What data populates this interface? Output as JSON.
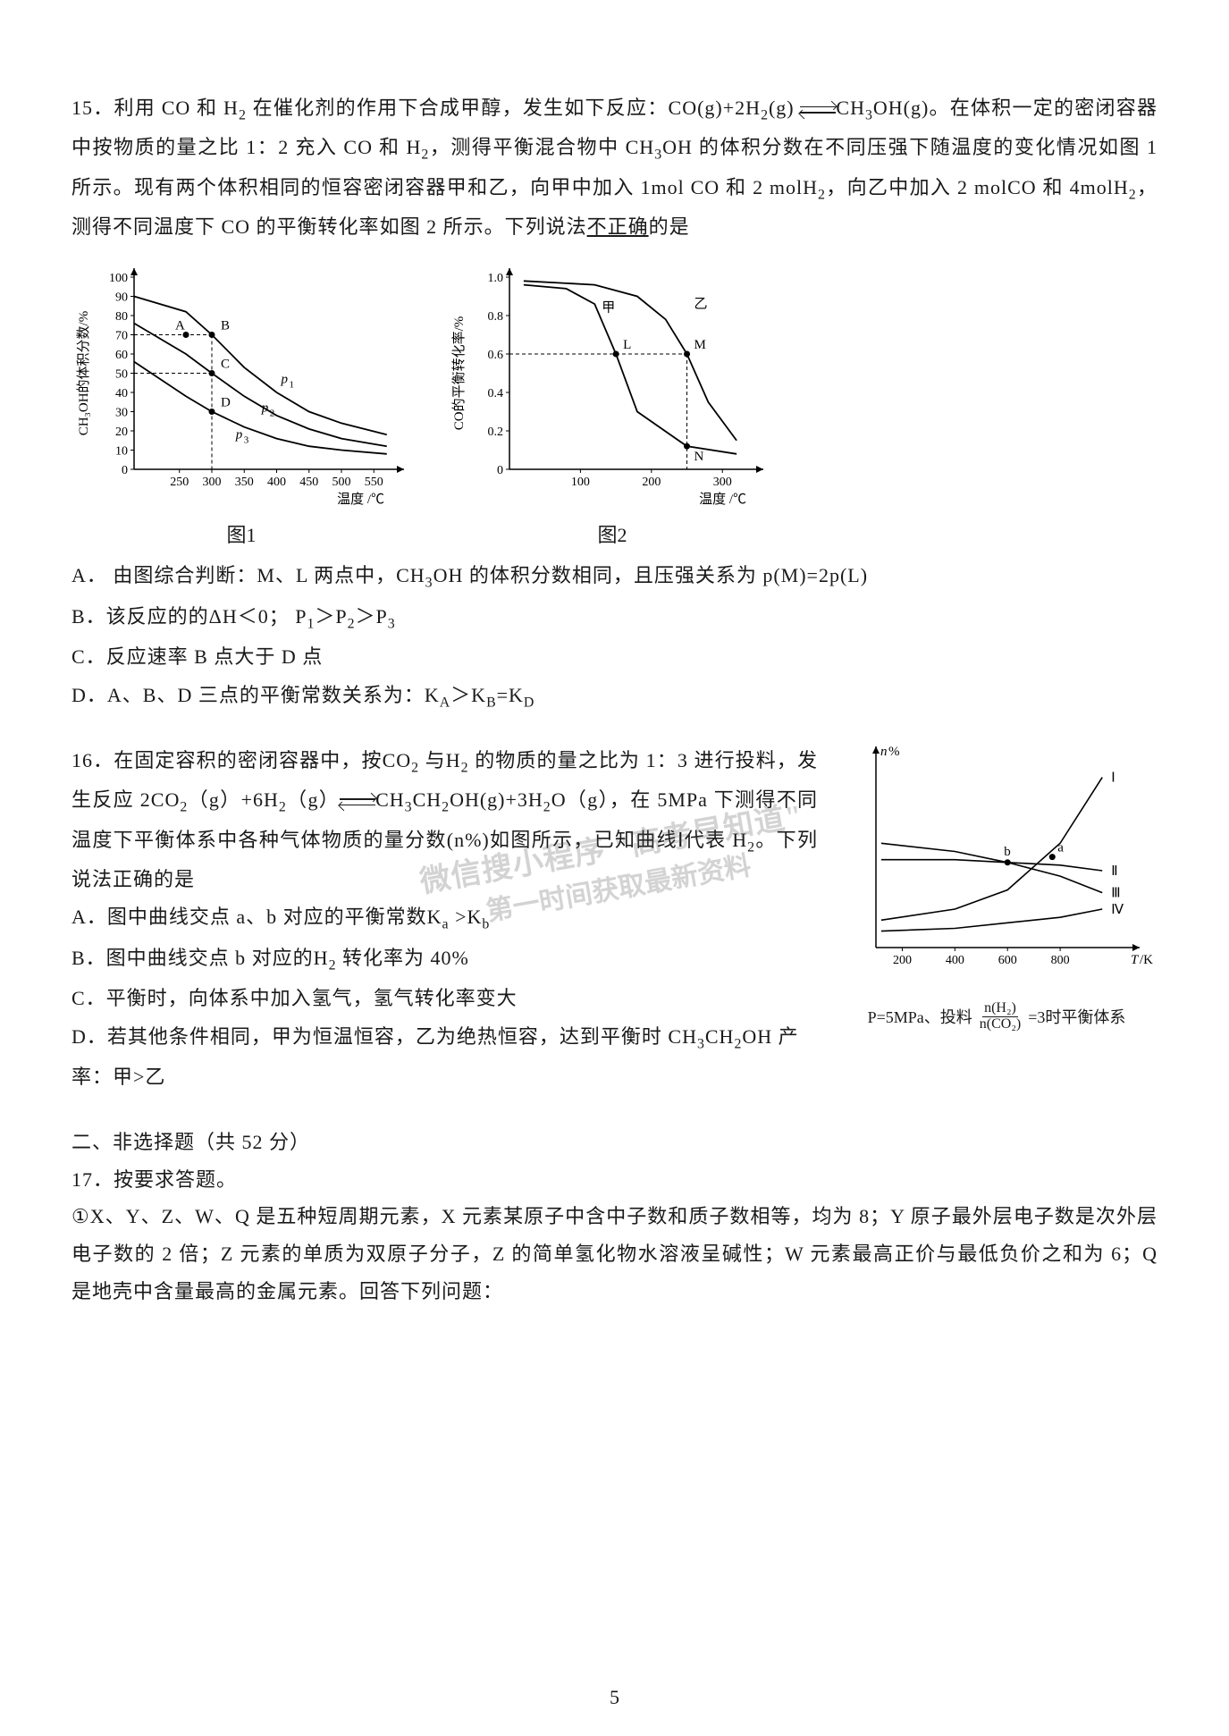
{
  "q15": {
    "intro_p1": "15．利用 CO 和 H",
    "intro_p2": " 在催化剂的作用下合成甲醇，发生如下反应：CO(g)+2H",
    "intro_p3": "(g)",
    "intro_p4": "CH",
    "intro_p5": "OH(g)。在体积一定的密闭容器中按物质的量之比 1：2 充入 CO 和 H",
    "intro_p6": "，测得平衡混合物中 CH",
    "intro_p7": "OH 的体积分数在不同压强下随温度的变化情况如图 1 所示。现有两个体积相同的恒容密闭容器甲和乙，向甲中加入 1mol CO 和 2 molH",
    "intro_p8": "，向乙中加入 2 molCO 和 4molH",
    "intro_p9": "，  测得不同温度下 CO 的平衡转化率如图 2 所示。下列说法",
    "intro_underline": "不正确",
    "intro_p10": "的是",
    "fig1_caption": "图1",
    "fig2_caption": "图2",
    "fig1": {
      "bg": "#ffffff",
      "axis": "#000000",
      "y_label": "CH₃OH的体积分数/%",
      "x_label": "温度 /℃",
      "y_ticks": [
        0,
        10,
        20,
        30,
        40,
        50,
        60,
        70,
        80,
        90,
        100
      ],
      "x_ticks": [
        250,
        300,
        350,
        400,
        450,
        500,
        550
      ],
      "curves": {
        "p1": [
          [
            180,
            90
          ],
          [
            260,
            82
          ],
          [
            300,
            70
          ],
          [
            350,
            53
          ],
          [
            400,
            40
          ],
          [
            450,
            30
          ],
          [
            500,
            24
          ],
          [
            570,
            18
          ]
        ],
        "p2": [
          [
            180,
            76
          ],
          [
            260,
            60
          ],
          [
            300,
            50
          ],
          [
            350,
            38
          ],
          [
            400,
            28
          ],
          [
            450,
            21
          ],
          [
            500,
            16
          ],
          [
            570,
            12
          ]
        ],
        "p3": [
          [
            180,
            56
          ],
          [
            260,
            38
          ],
          [
            300,
            30
          ],
          [
            350,
            22
          ],
          [
            400,
            16
          ],
          [
            450,
            12
          ],
          [
            500,
            10
          ],
          [
            570,
            8
          ]
        ]
      },
      "point_labels": [
        "A",
        "B",
        "C",
        "D"
      ],
      "curve_labels": [
        "p₁",
        "p₂",
        "p₃"
      ]
    },
    "fig2": {
      "bg": "#ffffff",
      "axis": "#000000",
      "y_label": "CO的平衡转化率/%",
      "x_label": "温度 /℃",
      "y_ticks": [
        0,
        0.2,
        0.4,
        0.6,
        0.8,
        1.0
      ],
      "x_ticks": [
        100,
        200,
        300
      ],
      "curves": {
        "jia": [
          [
            20,
            0.96
          ],
          [
            80,
            0.94
          ],
          [
            120,
            0.86
          ],
          [
            150,
            0.6
          ],
          [
            180,
            0.3
          ],
          [
            250,
            0.12
          ],
          [
            320,
            0.08
          ]
        ],
        "yi": [
          [
            20,
            0.98
          ],
          [
            120,
            0.96
          ],
          [
            180,
            0.9
          ],
          [
            220,
            0.78
          ],
          [
            250,
            0.6
          ],
          [
            280,
            0.35
          ],
          [
            320,
            0.15
          ]
        ]
      },
      "curve_labels": [
        "甲",
        "乙"
      ],
      "point_labels": [
        "L",
        "M",
        "N"
      ]
    },
    "optA_1": "A．  由图综合判断：M、L 两点中，CH",
    "optA_2": "OH 的体积分数相同，且压强关系为 p(M)=2p(L)",
    "optB_1": "B．该反应的的ΔH＜0；  P",
    "optB_2": "＞P",
    "optB_3": "＞P",
    "optC": "C．反应速率 B 点大于 D 点",
    "optD_1": "D．A、B、D 三点的平衡常数关系为：K",
    "optD_2": "＞K",
    "optD_3": "=K"
  },
  "q16": {
    "intro_1": "16．在固定容积的密闭容器中，按CO",
    "intro_2": " 与H",
    "intro_3": " 的物质的量之比为 1：3 进行投料，发生反应 2CO",
    "intro_4": "（g）+6H",
    "intro_5": "（g）",
    "intro_6": "CH",
    "intro_7": "CH",
    "intro_8": "OH(g)+3H",
    "intro_9": "O（g），在 5MPa 下测得不同温度下平衡体系中各种气体物质的量分数(n%)如图所示，已知曲线Ⅰ代表 H",
    "intro_10": "。下列说法正确的是",
    "optA_1": "A．图中曲线交点 a、b 对应的平衡常数K",
    "optA_2": " >K",
    "optB_1": "B．图中曲线交点 b 对应的H",
    "optB_2": " 转化率为 40%",
    "optC": "C．平衡时，向体系中加入氢气，氢气转化率变大",
    "optD_1": "D．若其他条件相同，甲为恒温恒容，乙为绝热恒容，达到平衡时 CH",
    "optD_2": "CH",
    "optD_3": "OH 产率：甲>乙",
    "fig": {
      "y_label": "n%",
      "x_label": "T/K",
      "x_ticks": [
        200,
        400,
        600,
        800
      ],
      "labels": [
        "Ⅰ",
        "Ⅱ",
        "Ⅲ",
        "Ⅳ"
      ],
      "points": [
        "a",
        "b"
      ],
      "curve1": [
        [
          120,
          10
        ],
        [
          400,
          14
        ],
        [
          600,
          21
        ],
        [
          800,
          38
        ],
        [
          960,
          62
        ]
      ],
      "curve2": [
        [
          120,
          32
        ],
        [
          400,
          32
        ],
        [
          600,
          31
        ],
        [
          800,
          30
        ],
        [
          960,
          28
        ]
      ],
      "curve3": [
        [
          120,
          38
        ],
        [
          400,
          35
        ],
        [
          600,
          31
        ],
        [
          800,
          26
        ],
        [
          960,
          20
        ]
      ],
      "curve4": [
        [
          120,
          6
        ],
        [
          400,
          7
        ],
        [
          600,
          9
        ],
        [
          800,
          11
        ],
        [
          960,
          14
        ]
      ]
    },
    "note_1": "P=5MPa、投料",
    "note_frac_num": "n(H₂)",
    "note_frac_den": "n(CO₂)",
    "note_2": " =3时平衡体系"
  },
  "watermark": {
    "line1": "微信搜小程序  \"高考早知道\"",
    "line2": "第一时间获取最新资料"
  },
  "section2": "二、非选择题（共 52 分）",
  "q17": {
    "title": "17．按要求答题。",
    "para": "①X、Y、Z、W、Q 是五种短周期元素，X 元素某原子中含中子数和质子数相等，均为 8；Y 原子最外层电子数是次外层电子数的 2 倍；Z 元素的单质为双原子分子，Z 的简单氢化物水溶液呈碱性；W 元素最高正价与最低负价之和为 6；Q 是地壳中含量最高的金属元素。回答下列问题："
  },
  "page_number": "5"
}
